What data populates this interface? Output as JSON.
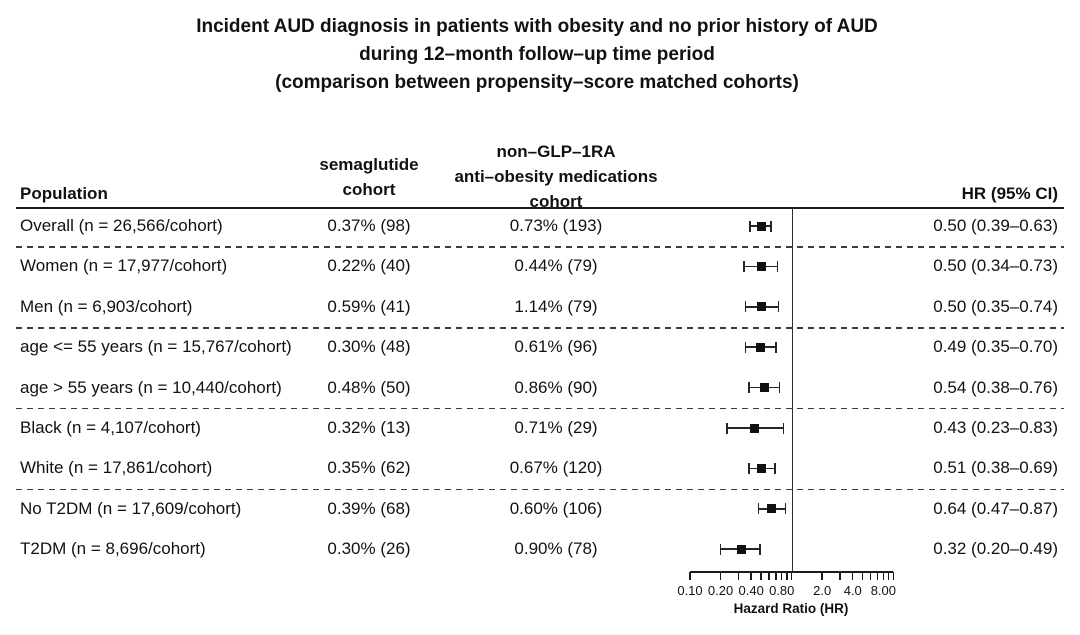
{
  "title": {
    "line1": "Incident AUD diagnosis in patients with obesity and no prior history of AUD",
    "line2": "during 12–month follow–up time period",
    "line3": "(comparison between propensity–score matched cohorts)"
  },
  "table_headers": {
    "population": "Population",
    "semaglutide": "semaglutide\ncohort",
    "non_glp1ra": "non–GLP–1RA\nanti–obesity medications\ncohort",
    "hr_ci": "HR (95% CI)"
  },
  "chart_data": {
    "type": "forest",
    "rows": [
      {
        "label": "Overall (n = 26,566/cohort)",
        "semaglutide": "0.37% (98)",
        "non_glp1ra": "0.73% (193)",
        "hr": 0.5,
        "ci_low": 0.39,
        "ci_high": 0.63,
        "hr_text": "0.50 (0.39–0.63)"
      },
      {
        "label": "Women (n = 17,977/cohort)",
        "semaglutide": "0.22% (40)",
        "non_glp1ra": "0.44% (79)",
        "hr": 0.5,
        "ci_low": 0.34,
        "ci_high": 0.73,
        "hr_text": "0.50 (0.34–0.73)"
      },
      {
        "label": "Men (n = 6,903/cohort)",
        "semaglutide": "0.59% (41)",
        "non_glp1ra": "1.14% (79)",
        "hr": 0.5,
        "ci_low": 0.35,
        "ci_high": 0.74,
        "hr_text": "0.50 (0.35–0.74)"
      },
      {
        "label": "age <= 55 years (n = 15,767/cohort)",
        "semaglutide": "0.30% (48)",
        "non_glp1ra": "0.61% (96)",
        "hr": 0.49,
        "ci_low": 0.35,
        "ci_high": 0.7,
        "hr_text": "0.49 (0.35–0.70)"
      },
      {
        "label": "age > 55 years (n = 10,440/cohort)",
        "semaglutide": "0.48% (50)",
        "non_glp1ra": "0.86% (90)",
        "hr": 0.54,
        "ci_low": 0.38,
        "ci_high": 0.76,
        "hr_text": "0.54 (0.38–0.76)"
      },
      {
        "label": "Black (n = 4,107/cohort)",
        "semaglutide": "0.32% (13)",
        "non_glp1ra": "0.71% (29)",
        "hr": 0.43,
        "ci_low": 0.23,
        "ci_high": 0.83,
        "hr_text": "0.43 (0.23–0.83)"
      },
      {
        "label": "White (n = 17,861/cohort)",
        "semaglutide": "0.35% (62)",
        "non_glp1ra": "0.67% (120)",
        "hr": 0.51,
        "ci_low": 0.38,
        "ci_high": 0.69,
        "hr_text": "0.51 (0.38–0.69)"
      },
      {
        "label": "No T2DM (n = 17,609/cohort)",
        "semaglutide": "0.39% (68)",
        "non_glp1ra": "0.60% (106)",
        "hr": 0.64,
        "ci_low": 0.47,
        "ci_high": 0.87,
        "hr_text": "0.64 (0.47–0.87)"
      },
      {
        "label": "T2DM (n = 8,696/cohort)",
        "semaglutide": "0.30% (26)",
        "non_glp1ra": "0.90% (78)",
        "hr": 0.32,
        "ci_low": 0.2,
        "ci_high": 0.49,
        "hr_text": "0.32 (0.20–0.49)"
      }
    ],
    "group_separators_after": [
      0,
      2,
      4,
      6
    ],
    "axis": {
      "scale": "log",
      "range": [
        0.1,
        10
      ],
      "reference_line": 1.0,
      "tick_labels": [
        {
          "v": 0.1,
          "label": "0.10"
        },
        {
          "v": 0.2,
          "label": "0.20"
        },
        {
          "v": 0.4,
          "label": "0.40"
        },
        {
          "v": 0.8,
          "label": "0.80"
        },
        {
          "v": 2.0,
          "label": "2.0"
        },
        {
          "v": 4.0,
          "label": "4.0"
        },
        {
          "v": 8.0,
          "label": "8.00"
        }
      ],
      "minor_ticks": [
        0.1,
        0.2,
        0.3,
        0.4,
        0.5,
        0.6,
        0.7,
        0.8,
        0.9,
        1,
        2,
        3,
        4,
        5,
        6,
        7,
        8,
        9,
        10
      ],
      "title": "Hazard Ratio (HR)"
    },
    "marker_color": "#101010"
  }
}
